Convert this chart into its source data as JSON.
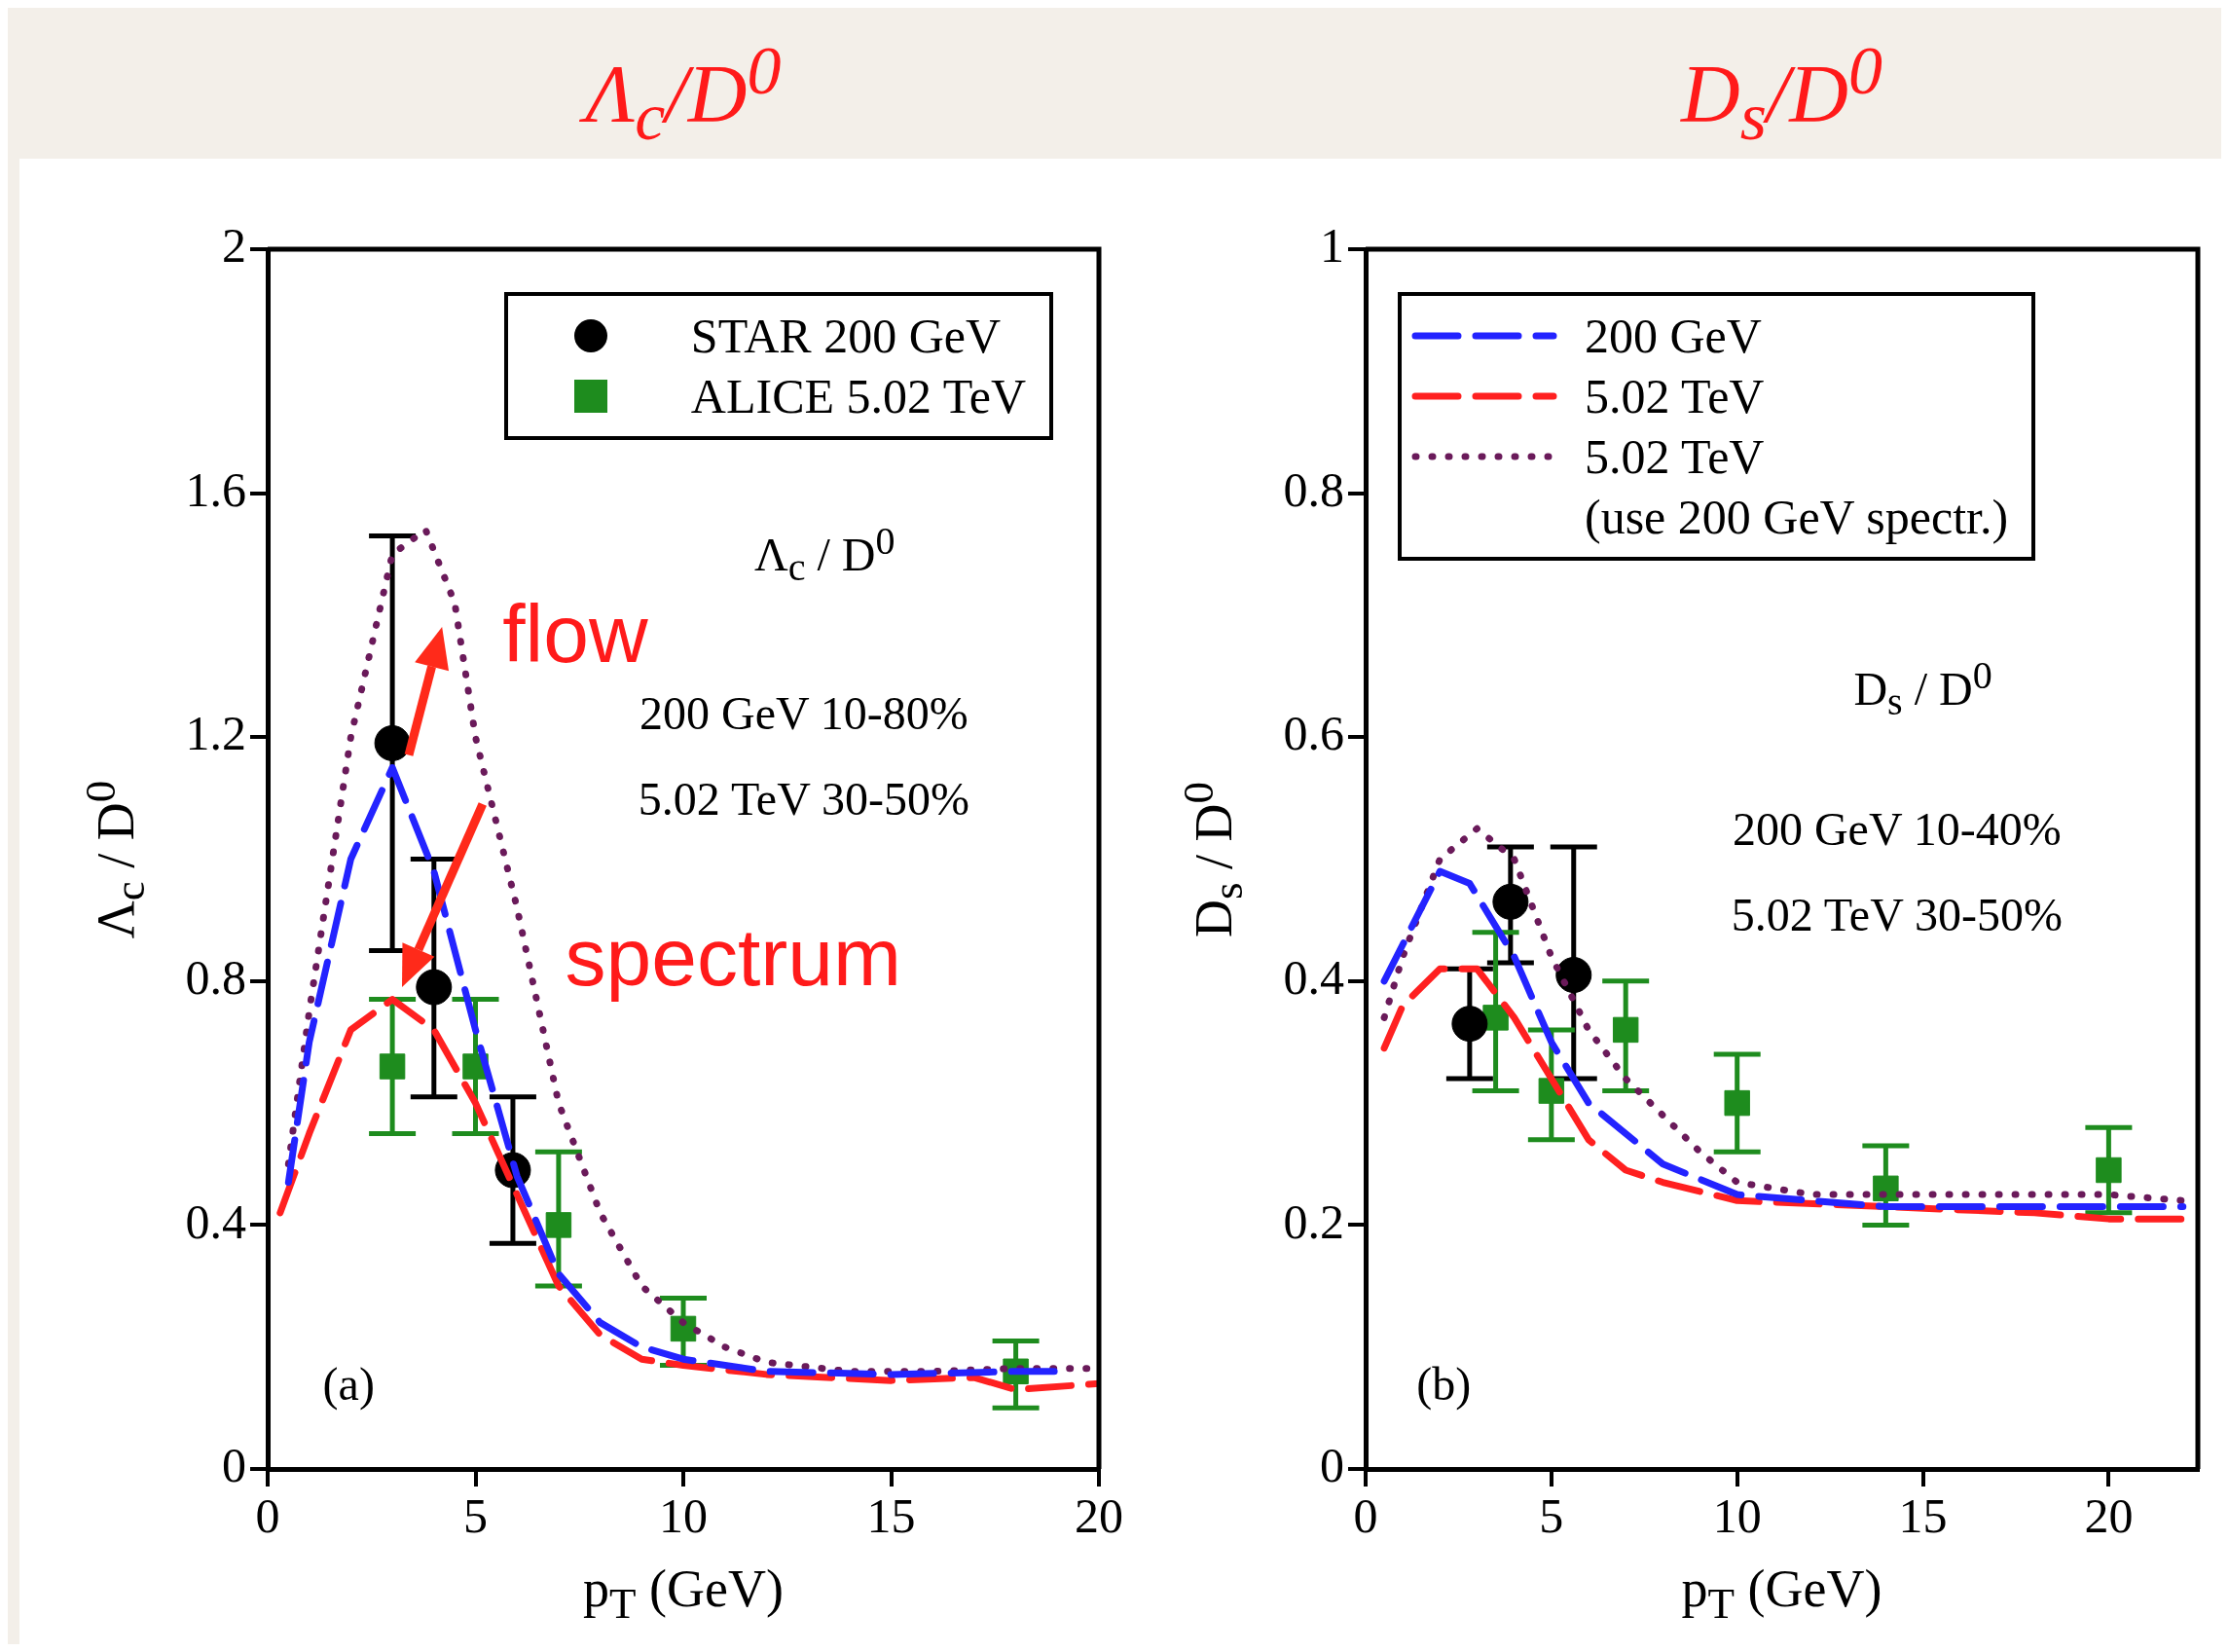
{
  "chart_data": [
    {
      "type": "line",
      "title": "Λ$_{c}$/D$^{0}$",
      "xlabel": "p$_{T}$ (GeV)",
      "ylabel": "Λ$_{c}$ / D$^{0}$",
      "xlim": [
        0,
        20
      ],
      "xticks": [
        0,
        5,
        10,
        15,
        20
      ],
      "ylim": [
        0,
        2
      ],
      "yticks": [
        0,
        0.4,
        0.8,
        1.2,
        1.6,
        2
      ],
      "legend": "top right",
      "annotations": [
        "Λ$_{c}$ / D$^{0}$",
        "200 GeV 10-80%",
        "5.02 TeV 30-50%",
        "(a)",
        "flow",
        "spectrum"
      ],
      "series": [
        {
          "name": "STAR 200 GeV",
          "type": "scatter",
          "marker": "circle",
          "color": "#000000",
          "x": [
            3,
            4,
            5.9
          ],
          "values": [
            1.19,
            0.79,
            0.49
          ],
          "errors": [
            [
              0.85,
              1.53
            ],
            [
              0.61,
              1.0
            ],
            [
              0.37,
              0.61
            ]
          ]
        },
        {
          "name": "ALICE 5.02 TeV",
          "type": "scatter",
          "marker": "square",
          "color": "#1e8c1e",
          "x": [
            3,
            5,
            7,
            10,
            18
          ],
          "values": [
            0.66,
            0.66,
            0.4,
            0.23,
            0.16
          ],
          "errors": [
            [
              0.55,
              0.77
            ],
            [
              0.55,
              0.77
            ],
            [
              0.3,
              0.52
            ],
            [
              0.17,
              0.28
            ],
            [
              0.1,
              0.21
            ]
          ]
        },
        {
          "type": "line",
          "line_style": "dashed",
          "color": "#2323ff",
          "x": [
            0.5,
            1,
            2,
            3,
            4,
            5,
            6,
            7,
            8,
            9,
            10,
            12,
            15,
            18,
            19
          ],
          "values": [
            0.47,
            0.7,
            1.0,
            1.15,
            0.98,
            0.72,
            0.48,
            0.32,
            0.24,
            0.2,
            0.18,
            0.16,
            0.155,
            0.16,
            0.16
          ]
        },
        {
          "type": "line",
          "line_style": "dashed",
          "color": "#ff2020",
          "x": [
            0.3,
            1,
            2,
            3,
            4,
            5,
            6,
            7,
            8,
            9,
            10,
            12,
            15,
            17,
            18,
            20
          ],
          "values": [
            0.42,
            0.55,
            0.72,
            0.77,
            0.72,
            0.6,
            0.45,
            0.3,
            0.22,
            0.18,
            0.17,
            0.155,
            0.145,
            0.15,
            0.13,
            0.14
          ]
        },
        {
          "type": "line",
          "line_style": "dotted",
          "color": "#6a1a5a",
          "x": [
            0.5,
            1,
            2,
            3,
            3.8,
            4.5,
            5,
            6,
            7,
            8,
            9,
            10,
            11,
            12,
            14,
            16,
            18,
            20
          ],
          "values": [
            0.5,
            0.75,
            1.2,
            1.5,
            1.54,
            1.42,
            1.2,
            0.92,
            0.6,
            0.42,
            0.3,
            0.24,
            0.2,
            0.175,
            0.16,
            0.16,
            0.165,
            0.165
          ]
        }
      ]
    },
    {
      "type": "line",
      "title": "D$_{s}$/D$^{0}$",
      "xlabel": "p$_{T}$ (GeV)",
      "ylabel": "D$_{s}$ / D$^{0}$",
      "xlim": [
        0,
        22.4
      ],
      "xticks": [
        0,
        5,
        10,
        15,
        20
      ],
      "ylim": [
        0,
        1
      ],
      "yticks": [
        0,
        0.2,
        0.4,
        0.6,
        0.8,
        1
      ],
      "legend": "top left",
      "annotations": [
        "D$_{s}$ / D$^{0}$",
        "200 GeV 10-40%",
        "5.02 TeV 30-50%",
        "(b)"
      ],
      "series": [
        {
          "type": "scatter",
          "marker": "circle",
          "color": "#000000",
          "x": [
            2.8,
            3.9,
            5.6
          ],
          "values": [
            0.365,
            0.465,
            0.405
          ],
          "errors": [
            [
              0.32,
              0.41
            ],
            [
              0.415,
              0.51
            ],
            [
              0.32,
              0.51
            ]
          ]
        },
        {
          "type": "scatter",
          "marker": "square",
          "color": "#1e8c1e",
          "x": [
            3.5,
            5,
            7,
            10,
            14,
            20
          ],
          "values": [
            0.37,
            0.31,
            0.36,
            0.3,
            0.23,
            0.245
          ],
          "errors": [
            [
              0.31,
              0.44
            ],
            [
              0.27,
              0.36
            ],
            [
              0.31,
              0.4
            ],
            [
              0.26,
              0.34
            ],
            [
              0.2,
              0.265
            ],
            [
              0.21,
              0.28
            ]
          ]
        },
        {
          "name": "200 GeV",
          "type": "line",
          "line_style": "dashed",
          "color": "#2323ff",
          "x": [
            0.5,
            1,
            2,
            2.8,
            4,
            5,
            6,
            8,
            10,
            14,
            18,
            22
          ],
          "values": [
            0.4,
            0.43,
            0.49,
            0.48,
            0.42,
            0.35,
            0.3,
            0.25,
            0.225,
            0.215,
            0.215,
            0.215
          ]
        },
        {
          "name": "5.02 TeV",
          "type": "line",
          "line_style": "dashed",
          "color": "#ff2020",
          "x": [
            0.5,
            1,
            2,
            3,
            4,
            5,
            6,
            7,
            8,
            10,
            14,
            18,
            20,
            22
          ],
          "values": [
            0.345,
            0.38,
            0.41,
            0.41,
            0.37,
            0.32,
            0.27,
            0.245,
            0.235,
            0.22,
            0.215,
            0.21,
            0.205,
            0.205
          ]
        },
        {
          "name": "5.02 TeV\n(use 200 GeV spectr.)",
          "type": "line",
          "line_style": "dotted",
          "color": "#6a1a5a",
          "x": [
            0.5,
            1,
            2,
            3,
            4,
            5,
            6,
            7,
            8,
            9,
            10,
            12,
            16,
            20,
            22
          ],
          "values": [
            0.37,
            0.42,
            0.5,
            0.525,
            0.5,
            0.42,
            0.36,
            0.32,
            0.29,
            0.26,
            0.235,
            0.225,
            0.225,
            0.225,
            0.22
          ]
        }
      ]
    }
  ]
}
